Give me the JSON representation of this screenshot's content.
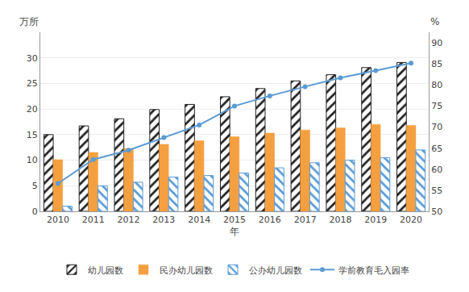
{
  "chart_data": {
    "type": "bar",
    "categories": [
      "2010",
      "2011",
      "2012",
      "2013",
      "2014",
      "2015",
      "2016",
      "2017",
      "2018",
      "2019",
      "2020"
    ],
    "series": [
      {
        "name": "幼儿园数",
        "type": "bar",
        "color": "#222222",
        "values": [
          15.0,
          16.7,
          18.1,
          19.9,
          20.9,
          22.4,
          24.0,
          25.5,
          26.7,
          28.1,
          29.1
        ]
      },
      {
        "name": "民办幼儿园数",
        "type": "bar",
        "color": "#F5A040",
        "values": [
          10.1,
          11.5,
          12.3,
          13.1,
          13.8,
          14.6,
          15.3,
          15.9,
          16.3,
          17.0,
          16.8
        ]
      },
      {
        "name": "公办幼儿园数",
        "type": "bar",
        "color": "#5B9BD5",
        "values": [
          1.0,
          5.0,
          5.7,
          6.7,
          7.0,
          7.5,
          8.5,
          9.5,
          10.0,
          10.5,
          12.0
        ]
      },
      {
        "name": "学前教育毛入园率",
        "type": "line",
        "axis": "y2",
        "color": "#5B9BD5",
        "marker": "circle",
        "values": [
          56.6,
          62.3,
          64.5,
          67.5,
          70.5,
          75.0,
          77.4,
          79.6,
          81.7,
          83.4,
          85.2
        ]
      }
    ],
    "x_label": "年",
    "y_label": "万所",
    "y2_label": "%",
    "ylim": [
      0,
      35
    ],
    "yticks": [
      0,
      5,
      10,
      15,
      20,
      25,
      30
    ],
    "y2lim": [
      50,
      92.5
    ],
    "y2ticks": [
      50,
      55,
      60,
      65,
      70,
      75,
      80,
      85,
      90
    ],
    "grid": true,
    "legend": "bottom"
  }
}
